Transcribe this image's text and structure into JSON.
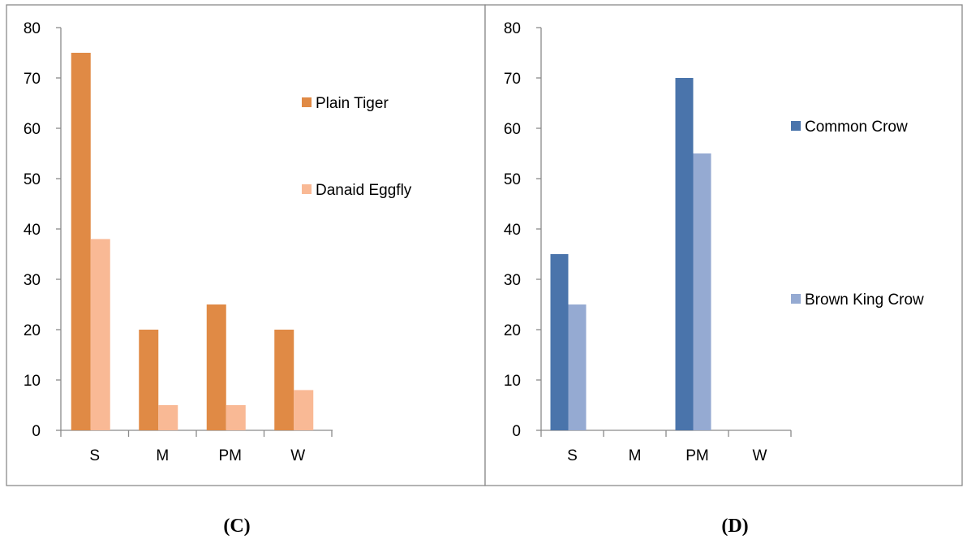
{
  "chart_data": [
    {
      "type": "bar",
      "panel_label": "(C)",
      "categories": [
        "S",
        "M",
        "PM",
        "W"
      ],
      "series": [
        {
          "name": "Plain Tiger",
          "values": [
            75,
            20,
            25,
            20
          ],
          "color": "#E08A45"
        },
        {
          "name": "Danaid Eggfly",
          "values": [
            38,
            5,
            5,
            8
          ],
          "color": "#F9B995"
        }
      ],
      "ylim": [
        0,
        80
      ],
      "yticks": [
        0,
        10,
        20,
        30,
        40,
        50,
        60,
        70,
        80
      ],
      "grid": false,
      "legend_placement": "right"
    },
    {
      "type": "bar",
      "panel_label": "(D)",
      "categories": [
        "S",
        "M",
        "PM",
        "W"
      ],
      "series": [
        {
          "name": "Common Crow",
          "values": [
            35,
            0,
            70,
            0
          ],
          "color": "#4A74AB"
        },
        {
          "name": "Brown King Crow",
          "values": [
            25,
            0,
            55,
            0
          ],
          "color": "#95AAD2"
        }
      ],
      "ylim": [
        0,
        80
      ],
      "yticks": [
        0,
        10,
        20,
        30,
        40,
        50,
        60,
        70,
        80
      ],
      "grid": false,
      "legend_placement": "right"
    }
  ]
}
